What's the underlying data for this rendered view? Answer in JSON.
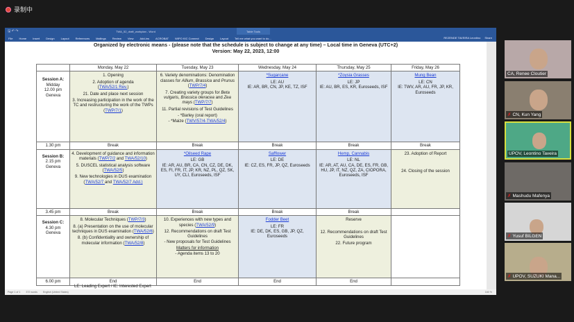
{
  "recording": {
    "label": "录制中"
  },
  "word": {
    "title": "TWA_52_draft_workplan - Word",
    "table_tools": "Table Tools",
    "ribbon_tabs": [
      "File",
      "Home",
      "Insert",
      "Design",
      "Layout",
      "References",
      "Mailings",
      "Review",
      "View",
      "Add-ins",
      "ACROBAT",
      "WIPO KIC Connect",
      "Design",
      "Layout"
    ],
    "tell_me": "Tell me what you want to do...",
    "user": "REZENDE TAVEIRA Leontino",
    "share": "Share",
    "status": {
      "page": "Page 1 of 1",
      "words": "372 words",
      "language": "English (United States)",
      "zoom": "160 %"
    }
  },
  "document": {
    "header_line1": "Organized by electronic means - (please note that the schedule is subject to change at any time) – Local time in Geneva (UTC+2)",
    "header_line2": "Version: May 22, 2023, 12:00",
    "days": [
      "Monday, May 22",
      "Tuesday, May 23",
      "Wednesday, May 24",
      "Thursday, May 25",
      "Friday, May 26"
    ],
    "sessionA": {
      "label": "Session A",
      "time": [
        "Midday",
        "12.00 pm",
        "Geneva"
      ]
    },
    "sessionB": {
      "label": "Session B",
      "time": [
        "2.15 pm",
        "Geneva"
      ]
    },
    "sessionC": {
      "label": "Session C",
      "time": [
        "4.30 pm",
        "Geneva"
      ]
    },
    "break1_time": "1.30 pm",
    "break2_time": "3.45 pm",
    "end_time": "6.00 pm",
    "break": "Break",
    "end": "End",
    "A": {
      "mon": {
        "i1": "1. Opening",
        "i2": "2. Adoption of agenda",
        "i2_open": "(",
        "i2_link": "TWA/52/1 Rev.",
        "i2_close": ")",
        "i3": "21. Date and place next session",
        "i4": "3. Increasing participation in the work of the TC and restructuring the work of the TWPs (",
        "i4_link": "TWP/7/1",
        "i4_close": ")"
      },
      "tue": {
        "i1a": "6. Variety denominations: Denomination classes for ",
        "i1b": "Allium",
        "i1c": ", ",
        "i1d": "Brassica",
        "i1e": " and ",
        "i1f": "Prunus",
        "i1g": " (",
        "i1_link": "TWP/7/4",
        "i1_close": ")",
        "i2a": "7. Creating variety groups for ",
        "i2b": "Beta vulgaris",
        "i2c": ", ",
        "i2d": "Brassica oleracea",
        "i2e": " and ",
        "i2f": "Zea mays",
        "i2g": " (",
        "i2_link": "TWP/7/7",
        "i2_close": ")",
        "i3": "11. Partial revisions of Test Guidelines",
        "i4": "- *Barley (oral report)",
        "i5": "- *Maize (",
        "i5_link": "TWV/57/4-TWA/52/4",
        "i5_close": ")"
      },
      "wed": {
        "crop": "*Sugarcane",
        "le": "LE: AU",
        "ie": "IE: AR, BR, CN, JP, KE, TZ, ISF"
      },
      "thu": {
        "crop": "*Zoysia Grasses",
        "le": "LE: JP",
        "ie": "IE: AU, BR, ES, KR, Euroseeds, ISF"
      },
      "fri": {
        "crop": "Mung Bean",
        "le": "LE: CN",
        "ie": "IE: TWV, AR, AU, FR, JP, KR, Euroseeds"
      }
    },
    "B": {
      "mon": {
        "i1": "4. Development of guidance and information materials (",
        "i1_link1": "TWP/7/2",
        "i1_and": " and ",
        "i1_link2": "TWA/52/10",
        "i1_close": ")",
        "i2": "5. DUSCEL statistical analysis software (",
        "i2_link": "TWA/52/5",
        "i2_close": ")",
        "i3": "9. New technologies in DUS examination (",
        "i3_link1": "TWA/52/7 ",
        "i3_and": "and ",
        "i3_link2": "TWA/52/7 Add.)"
      },
      "tue": {
        "crop": "*Oilseed Rape",
        "le": "LE: GB",
        "ie": "IE: AR, AU, BR, CA, CN, CZ, DE, DK, ES, FI, FR, IT, JP, KR, NZ, PL, QZ, SK, UY, CLI, Euroseeds, ISF"
      },
      "wed": {
        "crop": "Safflower",
        "le": "LE: DE",
        "ie": "IE: CZ, ES, FR, JP, QZ, Euroseeds"
      },
      "thu": {
        "crop": "Hemp, Cannabis",
        "le": "LE: NL",
        "ie": "IE: AR, AT, AU, CA, DE, ES, FR, GB, HU, JP, IT, NZ, QZ, ZA, CIOPORA, Euroseeds, ISF"
      },
      "fri": {
        "i1": "23. Adoption of Report",
        "i2": "24. Closing of the session"
      }
    },
    "C": {
      "mon": {
        "i1": "8. Molecular Techniques (",
        "i1_link": "TWP/7/3",
        "i1_close": ")",
        "i2": "8. (a) Presentation on the use of molecular techniques in DUS examination (",
        "i2_link": "TWA/52/6",
        "i2_close": ")",
        "i3": "8. (b) Confidentiality and ownership of molecular information (",
        "i3_link": "TWA/52/8",
        "i3_close": ")"
      },
      "tue": {
        "i1": "10. Experiences with new types and species (",
        "i1_link": "TWA/52/9",
        "i1_close": ")",
        "i2": "12. Recommendations on draft Test Guidelines",
        "i3": "- New proposals for Test Guidelines",
        "i4": "Matters for information",
        "i5": "- Agenda items 13 to 20"
      },
      "wed": {
        "crop": "Fodder Beet",
        "le": "LE: FR",
        "ie": "IE: DE, DK, ES, GB, JP, QZ, Euroseeds"
      },
      "thu": {
        "i1": "Reserve",
        "i2": "12. Recommendations on draft Test Guidelines",
        "i3": "22. Future program"
      }
    },
    "footnote": "LE: Leading Expert / IE: Interested Expert"
  },
  "participants": [
    {
      "name": "CA, Renee Cloutier",
      "muted": false
    },
    {
      "name": "CN, Kun Yang",
      "muted": true
    },
    {
      "name": "UPOV, Leontino Taveira",
      "muted": false,
      "active": true
    },
    {
      "name": "Mashudu Mafenya",
      "muted": true
    },
    {
      "name": "Yusuf BILGEN",
      "muted": true
    },
    {
      "name": "UPOV, SUZUKI Mana...",
      "muted": true
    }
  ],
  "colors": {
    "word_blue": "#2b579a",
    "agenda_green": "#eef0de",
    "crop_blue": "#dde5f1",
    "link": "#1a3bd6",
    "active_speaker": "#d8e040"
  }
}
